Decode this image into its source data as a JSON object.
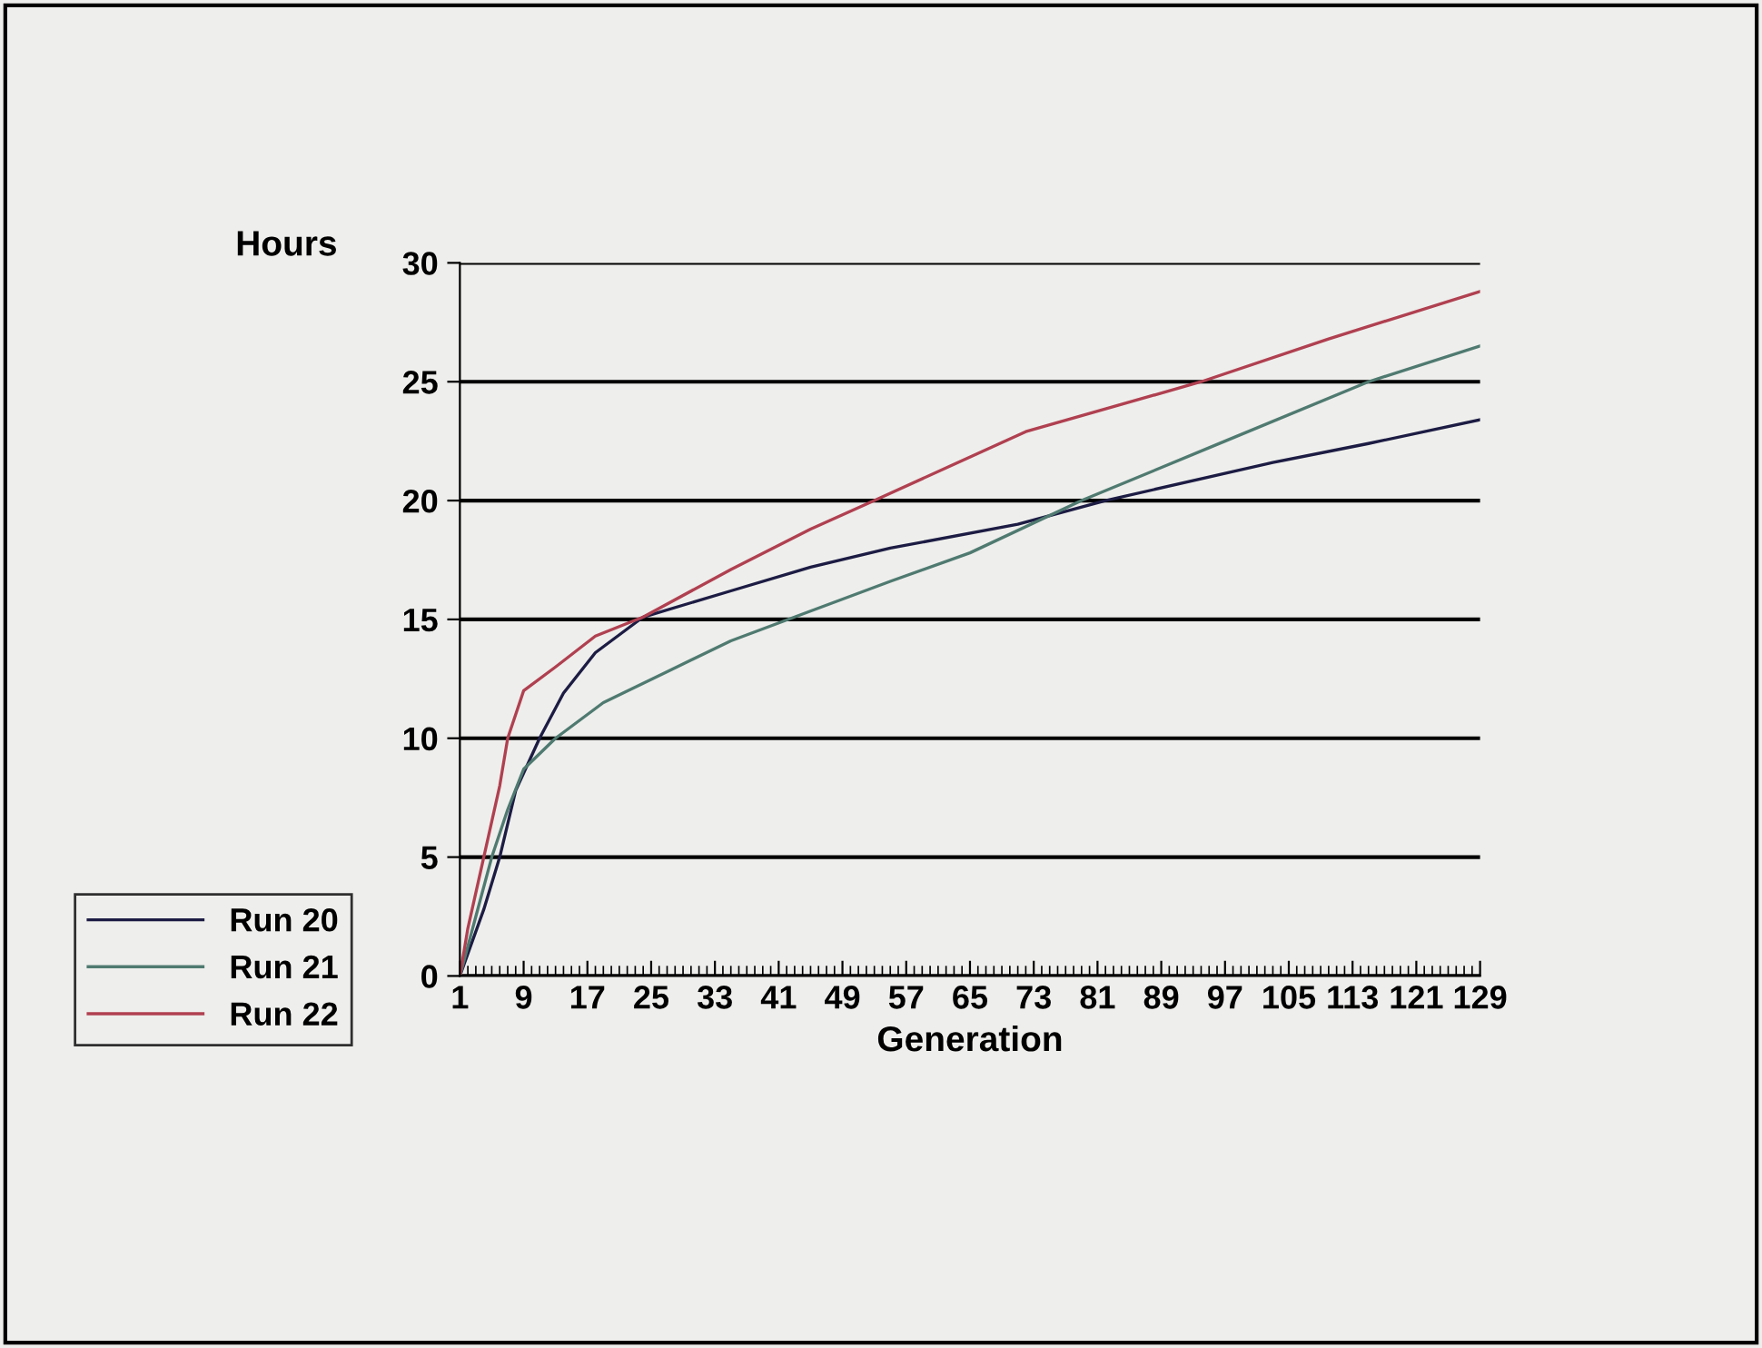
{
  "chart_data": {
    "type": "line",
    "ylabel": "Hours",
    "xlabel": "Generation",
    "xlim": [
      1,
      129
    ],
    "xticks": [
      1,
      9,
      17,
      25,
      33,
      41,
      49,
      57,
      65,
      73,
      81,
      89,
      97,
      105,
      113,
      121,
      129
    ],
    "ylim": [
      0,
      30
    ],
    "yticks": [
      0,
      5,
      10,
      15,
      20,
      25,
      30
    ],
    "grid": "y",
    "legend": "left",
    "marker": "none",
    "line_style": "solid",
    "series": [
      {
        "name": "Run 20",
        "color": "#1c1c44",
        "x": [
          1,
          4,
          6,
          8,
          11,
          14,
          18,
          24,
          35,
          45,
          55,
          71,
          82,
          103,
          115,
          129
        ],
        "values": [
          0,
          2.8,
          5,
          7.8,
          10,
          11.9,
          13.6,
          15.1,
          16.2,
          17.2,
          18,
          19,
          20,
          21.6,
          22.4,
          23.4
        ]
      },
      {
        "name": "Run 21",
        "color": "#4f7a70",
        "x": [
          1,
          3,
          5,
          7,
          9,
          13,
          19,
          27,
          35,
          43,
          55,
          65,
          79,
          97,
          115,
          129
        ],
        "values": [
          0,
          2.5,
          5,
          7,
          8.7,
          10,
          11.5,
          12.8,
          14.1,
          15.1,
          16.6,
          17.8,
          20,
          22.5,
          25,
          26.5
        ]
      },
      {
        "name": "Run 22",
        "color": "#b04050",
        "x": [
          1,
          2,
          4,
          6,
          7,
          9,
          13,
          18,
          24,
          35,
          45,
          53,
          72,
          94,
          110,
          129
        ],
        "values": [
          0,
          2,
          5,
          8,
          10,
          12,
          13,
          14.3,
          15.1,
          17.1,
          18.8,
          20,
          22.9,
          25,
          26.8,
          28.8
        ]
      }
    ]
  }
}
